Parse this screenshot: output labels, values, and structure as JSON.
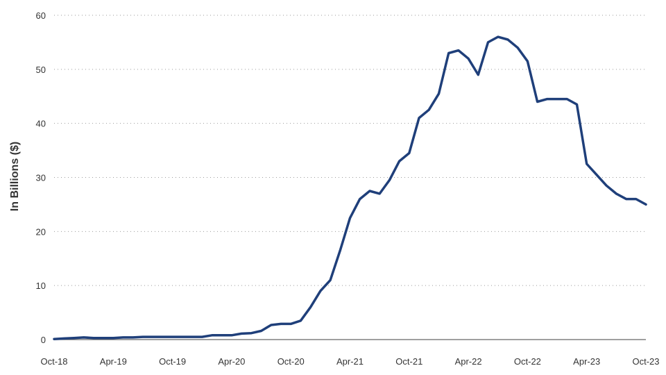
{
  "chart_data": {
    "type": "line",
    "title": "",
    "xlabel": "",
    "ylabel": "In Billions ($)",
    "ylim": [
      0,
      60
    ],
    "yticks": [
      0,
      10,
      20,
      30,
      40,
      50,
      60
    ],
    "xlim": [
      "2018-10",
      "2023-10"
    ],
    "xticks": [
      "Oct-18",
      "Apr-19",
      "Oct-19",
      "Apr-20",
      "Oct-20",
      "Apr-21",
      "Oct-21",
      "Apr-22",
      "Oct-22",
      "Apr-23",
      "Oct-23"
    ],
    "grid": true,
    "legend": "none",
    "series": [
      {
        "color": "#1f3f7a",
        "x": [
          "2018-10",
          "2018-11",
          "2018-12",
          "2019-01",
          "2019-02",
          "2019-03",
          "2019-04",
          "2019-05",
          "2019-06",
          "2019-07",
          "2019-08",
          "2019-09",
          "2019-10",
          "2019-11",
          "2019-12",
          "2020-01",
          "2020-02",
          "2020-03",
          "2020-04",
          "2020-05",
          "2020-06",
          "2020-07",
          "2020-08",
          "2020-09",
          "2020-10",
          "2020-11",
          "2020-12",
          "2021-01",
          "2021-02",
          "2021-03",
          "2021-04",
          "2021-05",
          "2021-06",
          "2021-07",
          "2021-08",
          "2021-09",
          "2021-10",
          "2021-11",
          "2021-12",
          "2022-01",
          "2022-02",
          "2022-03",
          "2022-04",
          "2022-05",
          "2022-06",
          "2022-07",
          "2022-08",
          "2022-09",
          "2022-10",
          "2022-11",
          "2022-12",
          "2023-01",
          "2023-02",
          "2023-03",
          "2023-04",
          "2023-05",
          "2023-06",
          "2023-07",
          "2023-08",
          "2023-09",
          "2023-10"
        ],
        "values": [
          0.1,
          0.2,
          0.3,
          0.4,
          0.3,
          0.3,
          0.3,
          0.4,
          0.4,
          0.5,
          0.5,
          0.5,
          0.5,
          0.5,
          0.5,
          0.5,
          0.8,
          0.8,
          0.8,
          1.1,
          1.2,
          1.6,
          2.7,
          2.9,
          2.9,
          3.5,
          6.0,
          9.0,
          11.0,
          16.5,
          22.5,
          26.0,
          27.5,
          27.0,
          29.5,
          33.0,
          34.5,
          41.0,
          42.5,
          45.5,
          53.0,
          53.5,
          52.0,
          49.0,
          55.0,
          56.0,
          55.5,
          54.0,
          51.5,
          44.0,
          44.5,
          44.5,
          44.5,
          43.5,
          32.5,
          30.5,
          28.5,
          27.0,
          26.0,
          26.0,
          25.0
        ]
      }
    ]
  }
}
